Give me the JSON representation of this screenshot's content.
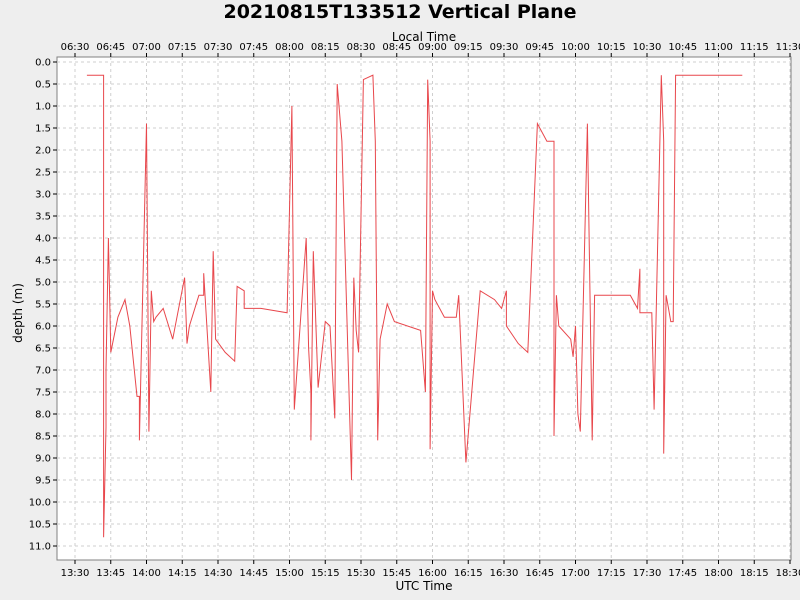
{
  "chart_data": {
    "type": "line",
    "title": "20210815T133512 Vertical Plane",
    "xlabel_bottom": "UTC Time",
    "xlabel_top": "Local Time",
    "ylabel": "depth (m)",
    "y_inverted": true,
    "ylim": [
      0,
      11.3
    ],
    "grid": true,
    "bottom_ticks": [
      "13:30",
      "13:45",
      "14:00",
      "14:15",
      "14:30",
      "14:45",
      "15:00",
      "15:15",
      "15:30",
      "15:45",
      "16:00",
      "16:15",
      "16:30",
      "16:45",
      "17:00",
      "17:15",
      "17:30",
      "17:45",
      "18:00",
      "18:15",
      "18:30"
    ],
    "top_ticks": [
      "06:30",
      "06:45",
      "07:00",
      "07:15",
      "07:30",
      "07:45",
      "08:00",
      "08:15",
      "08:30",
      "08:45",
      "09:00",
      "09:15",
      "09:30",
      "09:45",
      "10:00",
      "10:15",
      "10:30",
      "10:45",
      "11:00",
      "11:15",
      "11:30"
    ],
    "y_ticks": [
      "0.0",
      "0.5",
      "1.0",
      "1.5",
      "2.0",
      "2.5",
      "3.0",
      "3.5",
      "4.0",
      "4.5",
      "5.0",
      "5.5",
      "6.0",
      "6.5",
      "7.0",
      "7.5",
      "8.0",
      "8.5",
      "9.0",
      "9.5",
      "10.0",
      "10.5",
      "11.0"
    ],
    "series": [
      {
        "color": "#e8474c",
        "x": [
          "13:35",
          "13:37",
          "13:42",
          "13:42",
          "13:42",
          "13:43",
          "13:43",
          "13:44",
          "13:45",
          "13:48",
          "13:51",
          "13:53",
          "13:56",
          "13:57",
          "13:57",
          "14:00",
          "14:01",
          "14:02",
          "14:03",
          "14:04",
          "14:07",
          "14:11",
          "14:16",
          "14:17",
          "14:18",
          "14:22",
          "14:23",
          "14:24",
          "14:24",
          "14:27",
          "14:28",
          "14:29",
          "14:33",
          "14:37",
          "14:38",
          "14:41",
          "14:41",
          "14:44",
          "14:48",
          "14:59",
          "15:01",
          "15:02",
          "15:07",
          "15:08",
          "15:09",
          "15:09",
          "15:10",
          "15:12",
          "15:15",
          "15:17",
          "15:19",
          "15:20",
          "15:22",
          "15:26",
          "15:27",
          "15:28",
          "15:29",
          "15:31",
          "15:35",
          "15:36",
          "15:37",
          "15:38",
          "15:41",
          "15:44",
          "15:55",
          "15:57",
          "15:58",
          "15:59",
          "15:59",
          "16:00",
          "16:01",
          "16:05",
          "16:06",
          "16:10",
          "16:11",
          "16:14",
          "16:20",
          "16:26",
          "16:29",
          "16:31",
          "16:31",
          "16:36",
          "16:40",
          "16:44",
          "16:48",
          "16:51",
          "16:51",
          "16:52",
          "16:53",
          "16:58",
          "16:59",
          "17:00",
          "17:01",
          "17:02",
          "17:05",
          "17:07",
          "17:08",
          "17:13",
          "17:23",
          "17:25",
          "17:26",
          "17:27",
          "17:27",
          "17:32",
          "17:33",
          "17:36",
          "17:37",
          "17:37",
          "17:38",
          "17:39",
          "17:40",
          "17:41",
          "17:42",
          "17:42",
          "17:47",
          "18:02",
          "18:04",
          "18:08",
          "18:10",
          "18:10"
        ],
        "y": [
          0.3,
          0.3,
          0.3,
          2.0,
          10.8,
          8.3,
          7.0,
          4.0,
          6.6,
          5.8,
          5.4,
          6.0,
          7.6,
          7.6,
          8.6,
          1.4,
          8.4,
          5.2,
          5.9,
          5.8,
          5.6,
          6.3,
          4.9,
          6.4,
          6.0,
          5.3,
          5.3,
          5.3,
          4.8,
          7.5,
          4.3,
          6.3,
          6.6,
          6.8,
          5.1,
          5.2,
          5.6,
          5.6,
          5.6,
          5.7,
          1.0,
          7.9,
          4.0,
          6.5,
          7.5,
          8.6,
          4.3,
          7.4,
          5.9,
          6.0,
          8.1,
          0.5,
          1.8,
          9.5,
          4.9,
          6.1,
          6.6,
          0.4,
          0.3,
          1.8,
          8.6,
          6.3,
          5.5,
          5.9,
          6.1,
          7.5,
          0.4,
          1.8,
          8.8,
          5.2,
          5.4,
          5.8,
          5.8,
          5.8,
          5.3,
          9.1,
          5.2,
          5.4,
          5.6,
          5.2,
          6.0,
          6.4,
          6.6,
          1.4,
          1.8,
          1.8,
          8.5,
          5.3,
          6.0,
          6.3,
          6.7,
          6.0,
          8.0,
          8.4,
          1.4,
          8.6,
          5.3,
          5.3,
          5.3,
          5.5,
          5.6,
          4.7,
          5.7,
          5.7,
          7.9,
          0.3,
          1.8,
          8.9,
          5.3,
          5.6,
          5.9,
          5.9,
          0.3,
          0.3,
          0.3,
          0.3,
          0.3,
          0.3,
          0.3,
          0.3
        ]
      }
    ]
  }
}
